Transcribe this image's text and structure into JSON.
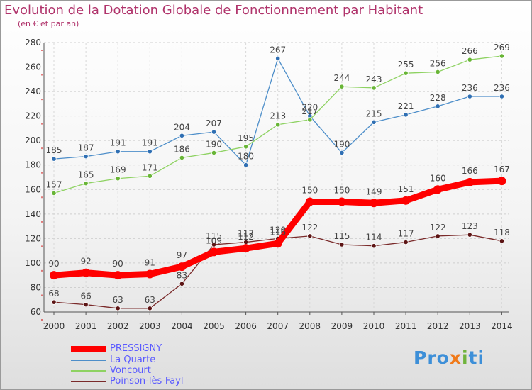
{
  "title": "Evolution de la Dotation Globale de Fonctionnement par Habitant",
  "subtitle": "(en € et par an)",
  "brand": {
    "p1": "Pro",
    "p2": "x",
    "p3": "i",
    "p4": "ti"
  },
  "chart_data": {
    "type": "line",
    "title": "Evolution de la Dotation Globale de Fonctionnement par Habitant",
    "ylabel": "(en € et par an)",
    "xlabel": "",
    "ylim": [
      60,
      280
    ],
    "yticks": [
      60,
      80,
      100,
      120,
      140,
      160,
      180,
      200,
      220,
      240,
      260,
      280
    ],
    "x": [
      "2000",
      "2001",
      "2002",
      "2003",
      "2004",
      "2005",
      "2006",
      "2007",
      "2008",
      "2009",
      "2010",
      "2011",
      "2012",
      "2013",
      "2014"
    ],
    "grid": "horizontal dashed",
    "legend": "bottom-left",
    "series": [
      {
        "name": "La Quarte",
        "color": "#4d8ec9",
        "dot": "#2f6fb3",
        "width": 1.3,
        "values": [
          185,
          187,
          191,
          191,
          204,
          207,
          180,
          267,
          220,
          190,
          215,
          221,
          228,
          236,
          236
        ]
      },
      {
        "name": "Voncourt",
        "color": "#8ed262",
        "dot": "#68b536",
        "width": 1.3,
        "values": [
          157,
          165,
          169,
          171,
          186,
          190,
          195,
          213,
          217,
          244,
          243,
          255,
          256,
          266,
          269
        ]
      },
      {
        "name": "Poinson-lès-Fayl",
        "color": "#7a2a2a",
        "dot": "#5c1414",
        "width": 1.3,
        "values": [
          68,
          66,
          63,
          63,
          83,
          115,
          117,
          120,
          122,
          115,
          114,
          117,
          122,
          123,
          118
        ]
      },
      {
        "name": "PRESSIGNY",
        "color": "#ff0000",
        "dot": "#ff0000",
        "width": 9,
        "values": [
          90,
          92,
          90,
          91,
          97,
          109,
          112,
          116,
          150,
          150,
          149,
          151,
          160,
          166,
          167
        ]
      }
    ],
    "legend_order": [
      "PRESSIGNY",
      "La Quarte",
      "Voncourt",
      "Poinson-lès-Fayl"
    ]
  }
}
